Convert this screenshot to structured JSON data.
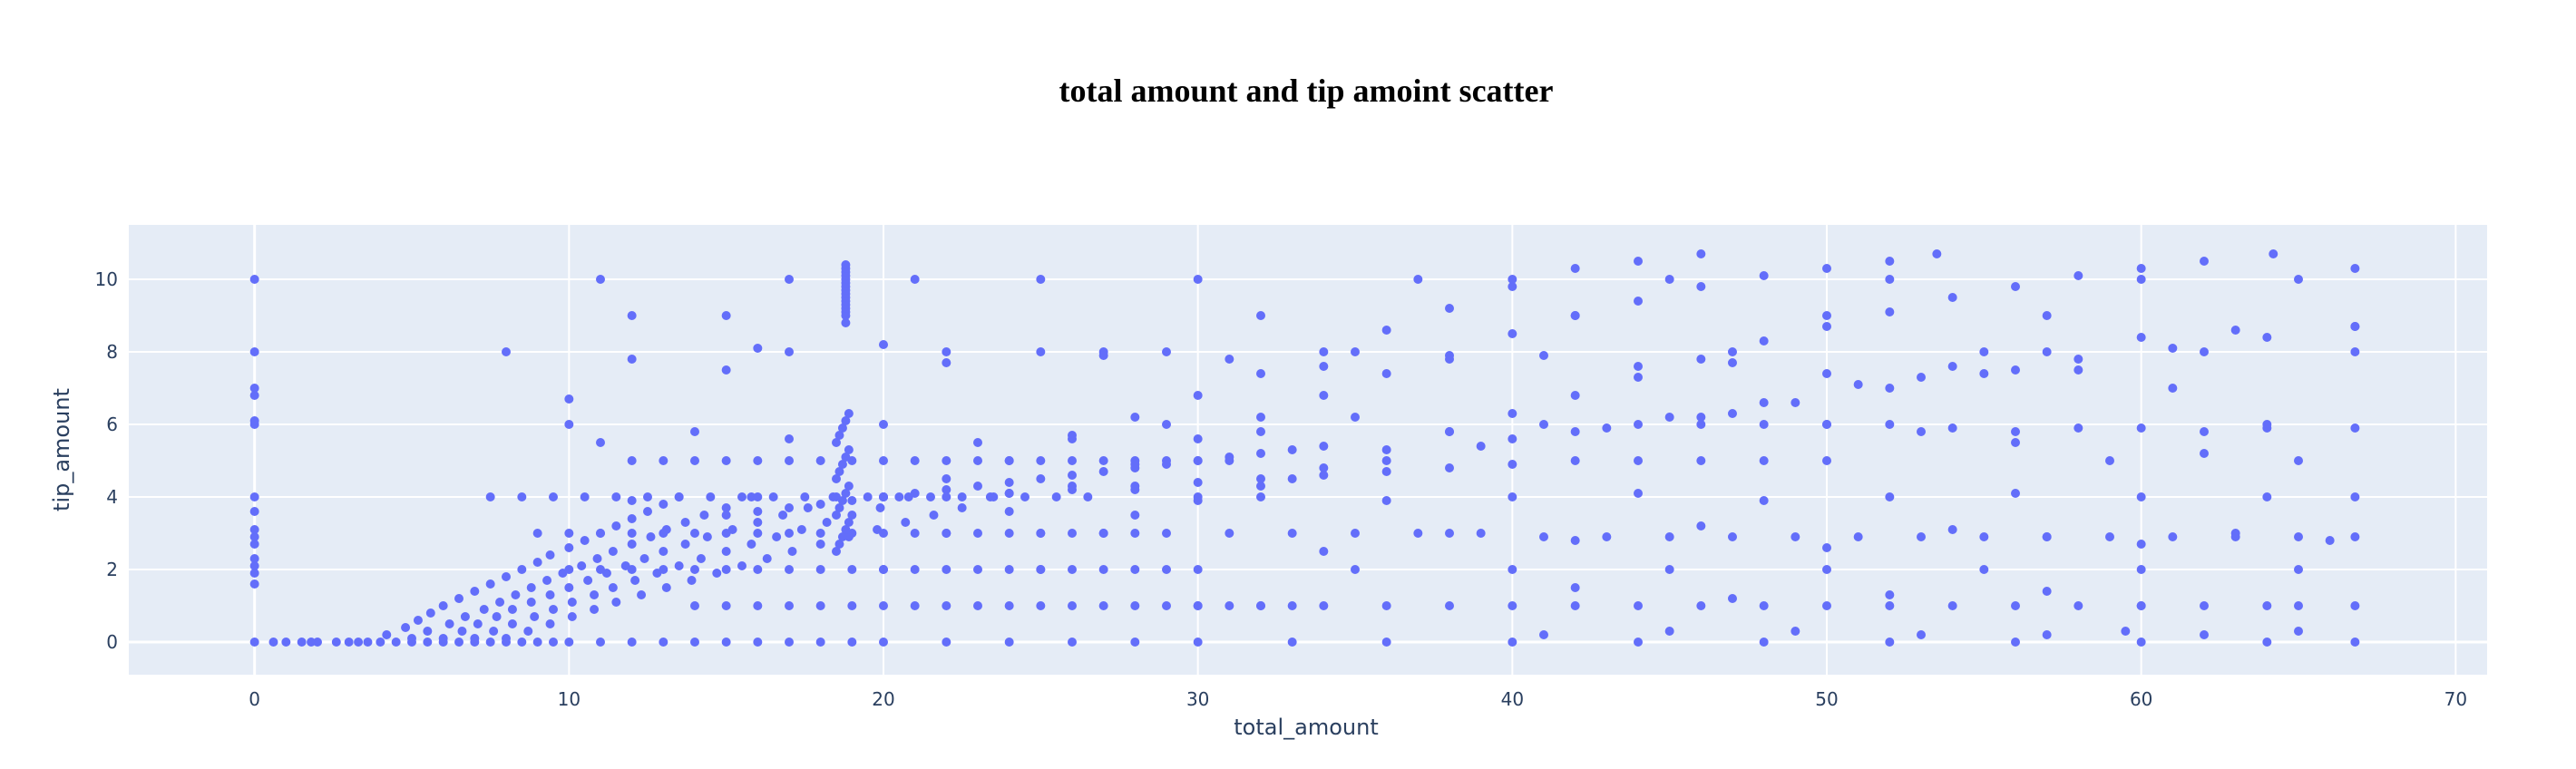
{
  "chart_data": {
    "type": "scatter",
    "title": "total amount and tip amoint scatter",
    "xlabel": "total_amount",
    "ylabel": "tip_amount",
    "xlim": [
      -4,
      71
    ],
    "ylim": [
      -0.9,
      11.5
    ],
    "x_ticks": [
      0,
      10,
      20,
      30,
      40,
      50,
      60,
      70
    ],
    "y_ticks": [
      0,
      2,
      4,
      6,
      8,
      10
    ],
    "grid": true,
    "legend": "none",
    "colors": {
      "marker": "#636efa",
      "plot_background": "#e5ecf6",
      "grid": "#ffffff"
    },
    "series": [
      {
        "x": [
          0,
          0,
          0,
          0,
          0,
          0,
          0,
          0,
          0,
          0,
          0,
          0,
          0,
          0,
          0,
          0,
          0.6,
          1.0,
          1.5,
          1.8,
          2.0,
          2.6,
          3.0,
          3.3,
          3.6,
          4.0,
          4.5,
          5.0,
          5.5,
          6.0,
          6.5,
          7.0,
          7.5,
          8.0,
          8.5,
          9.0,
          9.5,
          10,
          11,
          12,
          13,
          14,
          15,
          16,
          17,
          18,
          19,
          20,
          22,
          24,
          26,
          28,
          30,
          33,
          36,
          40,
          44,
          48,
          52,
          56,
          60,
          64,
          66.8,
          4.2,
          4.8,
          5.2,
          5.6,
          6.0,
          6.5,
          7.0,
          7.5,
          8.0,
          8.5,
          9.0,
          9.4,
          10.0,
          10.5,
          11.0,
          11.5,
          12.0,
          12.5,
          13.0,
          13.5,
          5.0,
          5.5,
          6.2,
          6.7,
          7.3,
          7.8,
          8.3,
          8.8,
          9.3,
          9.8,
          10.4,
          10.9,
          11.4,
          12.0,
          12.6,
          13.1,
          13.7,
          14.3,
          15.0,
          15.8,
          6.0,
          6.6,
          7.1,
          7.7,
          8.2,
          8.8,
          9.4,
          10.0,
          10.6,
          11.2,
          11.8,
          12.4,
          13.0,
          13.7,
          14.4,
          15.2,
          16.0,
          16.8,
          17.6,
          18.4,
          7.0,
          7.6,
          8.2,
          8.9,
          9.5,
          10.1,
          10.8,
          11.4,
          12.1,
          12.8,
          13.5,
          14.2,
          15.0,
          15.8,
          16.6,
          17.4,
          18.2,
          19.0,
          19.9,
          20.8,
          8.0,
          8.7,
          9.4,
          10.1,
          10.8,
          11.5,
          12.3,
          13.1,
          13.9,
          14.7,
          15.5,
          16.3,
          17.1,
          18.0,
          18.9,
          19.8,
          20.7,
          21.6,
          22.5,
          23.4,
          7.5,
          8.5,
          9.5,
          10.5,
          11.5,
          12.5,
          13.5,
          14.5,
          15.5,
          16.5,
          17.5,
          18.5,
          19.5,
          20.5,
          21.5,
          22.5,
          23.5,
          24.5,
          25.5,
          26.5,
          9.0,
          10.0,
          11.0,
          12.0,
          13.0,
          14.0,
          15.0,
          16.0,
          17.0,
          18.0,
          19.0,
          20.0,
          21.0,
          22.0,
          23.0,
          24.0,
          25.0,
          26.0,
          27.0,
          28.0,
          10.0,
          11.0,
          12.0,
          13.0,
          14.0,
          15.0,
          16.0,
          17.0,
          18.0,
          19.0,
          20.0,
          21.0,
          22.0,
          23.0,
          24.0,
          25.0,
          26.0,
          27.0,
          28.0,
          29.0,
          12.0,
          13.0,
          14.0,
          15.0,
          16.0,
          17.0,
          18.0,
          19.0,
          20.0,
          21.0,
          22.0,
          23.0,
          24.0,
          25.0,
          26.0,
          27.0,
          28.0,
          29.0,
          30.0,
          31.0,
          14.0,
          15.0,
          16.0,
          17.0,
          18.0,
          19.0,
          20.0,
          21.0,
          22.0,
          23.0,
          24.0,
          25.0,
          26.0,
          27.0,
          28.0,
          29.0,
          30.0,
          31.0,
          32.0,
          33.0,
          15.0,
          16.0,
          17.0,
          18.0,
          19.0,
          20.0,
          21.0,
          22.0,
          23.0,
          24.0,
          25.0,
          26.0,
          27.0,
          28.0,
          29.0,
          30.0,
          31.0,
          32.0,
          33.0,
          34.0,
          18.5,
          18.6,
          18.7,
          18.8,
          18.9,
          18.5,
          18.6,
          18.7,
          18.8,
          18.9,
          18.5,
          18.6,
          18.7,
          18.8,
          18.9,
          18.5,
          18.6,
          18.7,
          18.8,
          18.9,
          18.8,
          18.8,
          18.8,
          18.8,
          18.8,
          18.8,
          18.8,
          18.8,
          18.8,
          18.8,
          18.8,
          18.8,
          18.8,
          18.8,
          18.8,
          18.8,
          20,
          22,
          24,
          26,
          28,
          30,
          32,
          34,
          36,
          38,
          40,
          42,
          44,
          46,
          22,
          24,
          26,
          28,
          30,
          32,
          34,
          36,
          38,
          40,
          42,
          44,
          46,
          48,
          50,
          52,
          53.5,
          28,
          30,
          32,
          34,
          36,
          38,
          40,
          42,
          44,
          46,
          48,
          50,
          52,
          54,
          56,
          58,
          60,
          62,
          64.2,
          30,
          33,
          36,
          39,
          42,
          45,
          48,
          51,
          54,
          57,
          60,
          63,
          66.8,
          40,
          43,
          46,
          49,
          52,
          55,
          58,
          61,
          64,
          66.8,
          20,
          22,
          24,
          26,
          28,
          30,
          32,
          34,
          36,
          38,
          40,
          42,
          44,
          46,
          48,
          50,
          25,
          27,
          29,
          31,
          33,
          35,
          37,
          39,
          41,
          43,
          45,
          47,
          49,
          51,
          53,
          55,
          57,
          59,
          61,
          63,
          65,
          66.8,
          30,
          32,
          34,
          36,
          38,
          40,
          42,
          44,
          46,
          48,
          50,
          52,
          54,
          56,
          58,
          60,
          62,
          64,
          66.8,
          46,
          48,
          50,
          52,
          54,
          56,
          58,
          60,
          62,
          64,
          66.8,
          12,
          16,
          20,
          24,
          28,
          32,
          36,
          40,
          44,
          48,
          52,
          56,
          60,
          64,
          66.8,
          20,
          25,
          30,
          35,
          40,
          45,
          50,
          55,
          60,
          65,
          11,
          12,
          15,
          17,
          21,
          22,
          25,
          27,
          30,
          32,
          35,
          37,
          40,
          42,
          45,
          47,
          50,
          52,
          55,
          57,
          60,
          62,
          65,
          66.8,
          8,
          10,
          12,
          15,
          16,
          17,
          20,
          22,
          25,
          27,
          29,
          31,
          34,
          38,
          41,
          44,
          47,
          50,
          53,
          56,
          58,
          61,
          64,
          66.8,
          10,
          11,
          14,
          17,
          20,
          23,
          26,
          29,
          32,
          35,
          38,
          41,
          44,
          47,
          50,
          53,
          56,
          59,
          62,
          65,
          34,
          38,
          42,
          46,
          50,
          54,
          57,
          60,
          63,
          66,
          42,
          47,
          52,
          57,
          60,
          65,
          41,
          45,
          49,
          53,
          57,
          59.5,
          62,
          65
        ],
        "y": [
          0,
          1.6,
          1.9,
          2.1,
          2.3,
          2.7,
          2.9,
          3.1,
          3.6,
          4.0,
          6.0,
          6.1,
          6.8,
          7.0,
          8.0,
          10.0,
          0,
          0,
          0,
          0,
          0,
          0,
          0,
          0,
          0,
          0,
          0,
          0,
          0,
          0,
          0,
          0,
          0,
          0,
          0,
          0,
          0,
          0,
          0,
          0,
          0,
          0,
          0,
          0,
          0,
          0,
          0,
          0,
          0,
          0,
          0,
          0,
          0,
          0,
          0,
          0,
          0,
          0,
          0,
          0,
          0,
          0,
          0,
          0.2,
          0.4,
          0.6,
          0.8,
          1.0,
          1.2,
          1.4,
          1.6,
          1.8,
          2.0,
          2.2,
          2.4,
          2.6,
          2.8,
          3.0,
          3.2,
          3.4,
          3.6,
          3.8,
          4.0,
          0.1,
          0.3,
          0.5,
          0.7,
          0.9,
          1.1,
          1.3,
          1.5,
          1.7,
          1.9,
          2.1,
          2.3,
          2.5,
          2.7,
          2.9,
          3.1,
          3.3,
          3.5,
          3.7,
          4.0,
          0.1,
          0.3,
          0.5,
          0.7,
          0.9,
          1.1,
          1.3,
          1.5,
          1.7,
          1.9,
          2.1,
          2.3,
          2.5,
          2.7,
          2.9,
          3.1,
          3.3,
          3.5,
          3.7,
          4.0,
          0.1,
          0.3,
          0.5,
          0.7,
          0.9,
          1.1,
          1.3,
          1.5,
          1.7,
          1.9,
          2.1,
          2.3,
          2.5,
          2.7,
          2.9,
          3.1,
          3.3,
          3.5,
          3.7,
          4.0,
          0.1,
          0.3,
          0.5,
          0.7,
          0.9,
          1.1,
          1.3,
          1.5,
          1.7,
          1.9,
          2.1,
          2.3,
          2.5,
          2.7,
          2.9,
          3.1,
          3.3,
          3.5,
          3.7,
          4.0,
          4.0,
          4.0,
          4.0,
          4.0,
          4.0,
          4.0,
          4.0,
          4.0,
          4.0,
          4.0,
          4.0,
          4.0,
          4.0,
          4.0,
          4.0,
          4.0,
          4.0,
          4.0,
          4.0,
          4.0,
          3.0,
          3.0,
          3.0,
          3.0,
          3.0,
          3.0,
          3.0,
          3.0,
          3.0,
          3.0,
          3.0,
          3.0,
          3.0,
          3.0,
          3.0,
          3.0,
          3.0,
          3.0,
          3.0,
          3.0,
          2.0,
          2.0,
          2.0,
          2.0,
          2.0,
          2.0,
          2.0,
          2.0,
          2.0,
          2.0,
          2.0,
          2.0,
          2.0,
          2.0,
          2.0,
          2.0,
          2.0,
          2.0,
          2.0,
          2.0,
          5.0,
          5.0,
          5.0,
          5.0,
          5.0,
          5.0,
          5.0,
          5.0,
          5.0,
          5.0,
          5.0,
          5.0,
          5.0,
          5.0,
          5.0,
          5.0,
          5.0,
          5.0,
          5.0,
          5.0,
          1.0,
          1.0,
          1.0,
          1.0,
          1.0,
          1.0,
          1.0,
          1.0,
          1.0,
          1.0,
          1.0,
          1.0,
          1.0,
          1.0,
          1.0,
          1.0,
          1.0,
          1.0,
          1.0,
          1.0,
          3.5,
          3.6,
          3.7,
          3.8,
          3.9,
          4.0,
          4.1,
          4.2,
          4.3,
          4.4,
          4.5,
          4.6,
          4.7,
          4.8,
          4.9,
          5.0,
          5.1,
          5.2,
          5.3,
          5.4,
          2.5,
          2.7,
          2.9,
          3.1,
          3.3,
          3.5,
          3.7,
          3.9,
          4.1,
          4.3,
          4.5,
          4.7,
          4.9,
          5.1,
          5.3,
          5.5,
          5.7,
          5.9,
          6.1,
          6.3,
          8.8,
          9.0,
          9.1,
          9.2,
          9.3,
          9.4,
          9.5,
          9.6,
          9.7,
          9.8,
          9.9,
          10.0,
          10.1,
          10.2,
          10.3,
          10.4,
          4.0,
          4.5,
          5.0,
          5.6,
          6.2,
          6.8,
          7.4,
          8.0,
          8.6,
          9.2,
          9.8,
          10.3,
          10.5,
          10.7,
          3.0,
          3.6,
          4.3,
          4.9,
          5.6,
          6.2,
          6.8,
          7.4,
          7.9,
          8.5,
          9.0,
          9.4,
          9.8,
          10.1,
          10.3,
          10.5,
          10.7,
          3.5,
          3.9,
          4.3,
          4.8,
          5.3,
          5.8,
          6.3,
          6.8,
          7.3,
          7.8,
          8.3,
          8.7,
          9.1,
          9.5,
          9.8,
          10.1,
          10.3,
          10.5,
          10.7,
          4.0,
          4.5,
          5.0,
          5.4,
          5.8,
          6.2,
          6.6,
          7.1,
          7.6,
          8.0,
          8.4,
          8.6,
          8.7,
          5.6,
          5.9,
          6.2,
          6.6,
          7.0,
          7.4,
          7.8,
          8.1,
          8.4,
          8.7,
          4.0,
          4.0,
          4.1,
          4.2,
          4.3,
          4.4,
          4.5,
          4.6,
          4.7,
          4.8,
          4.9,
          5.0,
          5.0,
          5.0,
          5.0,
          5.0,
          3.0,
          3.0,
          3.0,
          3.0,
          3.0,
          3.0,
          3.0,
          3.0,
          2.9,
          2.9,
          2.9,
          2.9,
          2.9,
          2.9,
          2.9,
          2.9,
          2.9,
          2.9,
          2.9,
          2.9,
          2.9,
          2.9,
          1.0,
          1.0,
          1.0,
          1.0,
          1.0,
          1.0,
          1.0,
          1.0,
          1.0,
          1.0,
          1.0,
          1.0,
          1.0,
          1.0,
          1.0,
          1.0,
          1.0,
          1.0,
          1.0,
          6.0,
          6.0,
          6.0,
          6.0,
          5.9,
          5.8,
          5.9,
          5.9,
          5.8,
          5.9,
          5.9,
          3.9,
          4.0,
          4.0,
          4.1,
          4.2,
          4.0,
          3.9,
          4.0,
          4.1,
          3.9,
          4.0,
          4.1,
          4.0,
          4.0,
          4.0,
          2.0,
          2.0,
          2.0,
          2.0,
          2.0,
          2.0,
          2.0,
          2.0,
          2.0,
          2.0,
          10.0,
          9.0,
          9.0,
          10.0,
          10.0,
          8.0,
          10.0,
          8.0,
          10.0,
          9.0,
          8.0,
          10.0,
          10.0,
          9.0,
          10.0,
          8.0,
          9.0,
          10.0,
          8.0,
          9.0,
          10.0,
          8.0,
          10.0,
          10.3,
          8.0,
          6.7,
          7.8,
          7.5,
          8.1,
          8.0,
          8.2,
          7.7,
          8.0,
          7.9,
          8.0,
          7.8,
          7.6,
          7.8,
          7.9,
          7.6,
          7.7,
          7.4,
          7.3,
          7.5,
          7.5,
          7.0,
          6.0,
          8.0,
          6.0,
          5.5,
          5.8,
          5.6,
          6.0,
          5.5,
          5.7,
          6.0,
          5.8,
          6.2,
          5.8,
          6.0,
          6.0,
          6.3,
          6.0,
          5.8,
          5.5,
          5.0,
          5.2,
          5.0,
          2.5,
          3.0,
          2.8,
          3.2,
          2.6,
          3.1,
          2.9,
          2.7,
          3.0,
          2.8,
          1.5,
          1.2,
          1.3,
          1.4,
          1.0,
          1.0,
          0.2,
          0.3,
          0.3,
          0.2,
          0.2,
          0.3,
          0.2,
          0.3
        ]
      }
    ]
  }
}
